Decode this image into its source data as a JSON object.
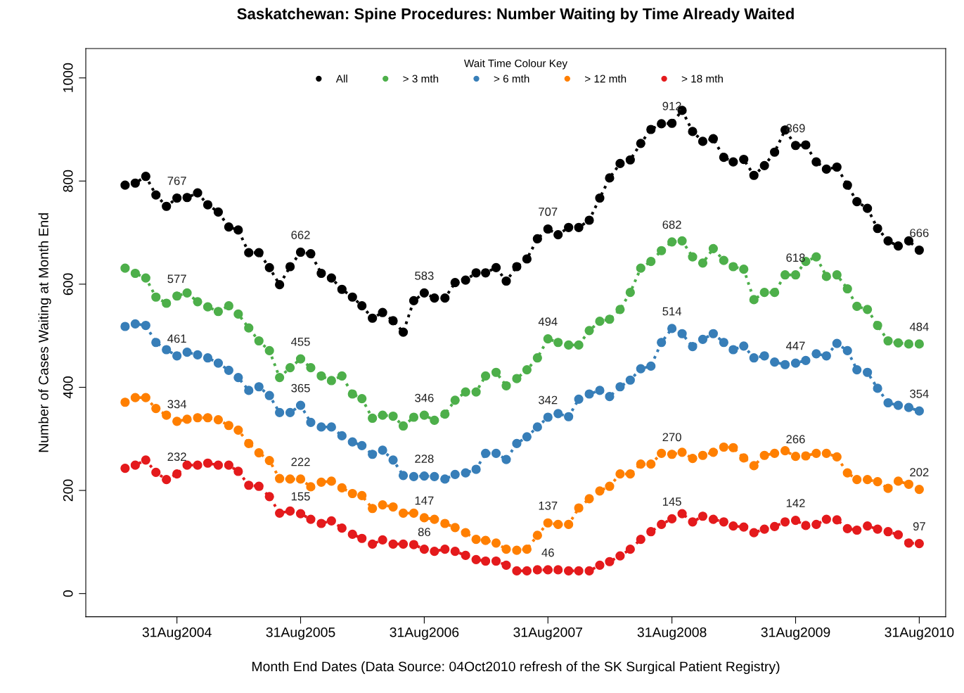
{
  "chart_data": {
    "type": "line",
    "title": "Saskatchewan: Spine Procedures: Number Waiting by Time Already Waited",
    "xlabel": "Month End Dates (Data Source: 04Oct2010 refresh of the SK Surgical Patient Registry)",
    "ylabel": "Number of Cases Waiting at Month End",
    "legend_title": "Wait Time Colour Key",
    "legend": "top",
    "marker": "circle",
    "line_style": "dotted",
    "grid": false,
    "x": [
      "2004-03-31",
      "2004-04-30",
      "2004-05-31",
      "2004-06-30",
      "2004-07-31",
      "2004-08-31",
      "2004-09-30",
      "2004-10-31",
      "2004-11-30",
      "2004-12-31",
      "2005-01-31",
      "2005-02-28",
      "2005-03-31",
      "2005-04-30",
      "2005-05-31",
      "2005-06-30",
      "2005-07-31",
      "2005-08-31",
      "2005-09-30",
      "2005-10-31",
      "2005-11-30",
      "2005-12-31",
      "2006-01-31",
      "2006-02-28",
      "2006-03-31",
      "2006-04-30",
      "2006-05-31",
      "2006-06-30",
      "2006-07-31",
      "2006-08-31",
      "2006-09-30",
      "2006-10-31",
      "2006-11-30",
      "2006-12-31",
      "2007-01-31",
      "2007-02-28",
      "2007-03-31",
      "2007-04-30",
      "2007-05-31",
      "2007-06-30",
      "2007-07-31",
      "2007-08-31",
      "2007-09-30",
      "2007-10-31",
      "2007-11-30",
      "2007-12-31",
      "2008-01-31",
      "2008-02-29",
      "2008-03-31",
      "2008-04-30",
      "2008-05-31",
      "2008-06-30",
      "2008-07-31",
      "2008-08-31",
      "2008-09-30",
      "2008-10-31",
      "2008-11-30",
      "2008-12-31",
      "2009-01-31",
      "2009-02-28",
      "2009-03-31",
      "2009-04-30",
      "2009-05-31",
      "2009-06-30",
      "2009-07-31",
      "2009-08-31",
      "2009-09-30",
      "2009-10-31",
      "2009-11-30",
      "2009-12-31",
      "2010-01-31",
      "2010-02-28",
      "2010-03-31",
      "2010-04-30",
      "2010-05-31",
      "2010-06-30",
      "2010-07-31",
      "2010-08-31"
    ],
    "xlim": [
      "2003-12-06",
      "2010-11-17"
    ],
    "xticks": [
      {
        "value": "2004-08-31",
        "label": "31Aug2004"
      },
      {
        "value": "2005-08-31",
        "label": "31Aug2005"
      },
      {
        "value": "2006-08-31",
        "label": "31Aug2006"
      },
      {
        "value": "2007-08-31",
        "label": "31Aug2007"
      },
      {
        "value": "2008-08-31",
        "label": "31Aug2008"
      },
      {
        "value": "2009-08-31",
        "label": "31Aug2009"
      },
      {
        "value": "2010-08-31",
        "label": "31Aug2010"
      }
    ],
    "ylim": [
      -45,
      1057
    ],
    "yticks": [
      0,
      200,
      400,
      600,
      800,
      1000
    ],
    "series": [
      {
        "name": "All",
        "color": "#000000",
        "values": [
          792,
          796,
          809,
          773,
          751,
          767,
          768,
          777,
          754,
          740,
          711,
          705,
          661,
          661,
          632,
          599,
          634,
          662,
          659,
          621,
          612,
          590,
          575,
          558,
          534,
          545,
          529,
          507,
          568,
          583,
          573,
          573,
          603,
          608,
          622,
          622,
          632,
          606,
          634,
          649,
          688,
          707,
          696,
          710,
          710,
          724,
          767,
          806,
          834,
          841,
          873,
          900,
          911,
          912,
          937,
          896,
          877,
          882,
          846,
          837,
          842,
          811,
          830,
          856,
          899,
          869,
          870,
          837,
          823,
          827,
          792,
          760,
          747,
          708,
          684,
          674,
          684,
          666
        ],
        "value_labels": [
          null,
          null,
          null,
          null,
          null,
          "767",
          null,
          null,
          null,
          null,
          null,
          null,
          null,
          null,
          null,
          null,
          null,
          "662",
          null,
          null,
          null,
          null,
          null,
          null,
          null,
          null,
          null,
          null,
          null,
          "583",
          null,
          null,
          null,
          null,
          null,
          null,
          null,
          null,
          null,
          null,
          null,
          "707",
          null,
          null,
          null,
          null,
          null,
          null,
          null,
          null,
          null,
          null,
          null,
          "912",
          null,
          null,
          null,
          null,
          null,
          null,
          null,
          null,
          null,
          null,
          null,
          "869",
          null,
          null,
          null,
          null,
          null,
          null,
          null,
          null,
          null,
          null,
          null,
          "666"
        ]
      },
      {
        "name": "> 3 mth",
        "color": "#4daf4a",
        "values": [
          631,
          621,
          612,
          575,
          563,
          577,
          583,
          566,
          556,
          547,
          558,
          542,
          515,
          490,
          471,
          419,
          438,
          455,
          438,
          422,
          413,
          422,
          387,
          378,
          340,
          346,
          344,
          325,
          342,
          346,
          336,
          348,
          375,
          391,
          391,
          422,
          429,
          403,
          417,
          434,
          457,
          494,
          487,
          482,
          482,
          510,
          528,
          532,
          551,
          584,
          631,
          644,
          665,
          682,
          684,
          653,
          641,
          669,
          646,
          634,
          629,
          570,
          584,
          584,
          618,
          618,
          644,
          653,
          615,
          618,
          591,
          557,
          551,
          520,
          490,
          486,
          484,
          484
        ],
        "value_labels": [
          null,
          null,
          null,
          null,
          null,
          "577",
          null,
          null,
          null,
          null,
          null,
          null,
          null,
          null,
          null,
          null,
          null,
          "455",
          null,
          null,
          null,
          null,
          null,
          null,
          null,
          null,
          null,
          null,
          null,
          "346",
          null,
          null,
          null,
          null,
          null,
          null,
          null,
          null,
          null,
          null,
          null,
          "494",
          null,
          null,
          null,
          null,
          null,
          null,
          null,
          null,
          null,
          null,
          null,
          "682",
          null,
          null,
          null,
          null,
          null,
          null,
          null,
          null,
          null,
          null,
          null,
          "618",
          null,
          null,
          null,
          null,
          null,
          null,
          null,
          null,
          null,
          null,
          null,
          "484"
        ]
      },
      {
        "name": "> 6 mth",
        "color": "#377eb8",
        "values": [
          518,
          523,
          520,
          487,
          473,
          461,
          468,
          463,
          457,
          447,
          433,
          419,
          394,
          401,
          384,
          351,
          351,
          365,
          332,
          323,
          323,
          306,
          294,
          287,
          270,
          278,
          259,
          229,
          227,
          228,
          227,
          222,
          231,
          234,
          241,
          272,
          272,
          260,
          291,
          304,
          323,
          342,
          349,
          343,
          377,
          387,
          394,
          382,
          401,
          414,
          436,
          441,
          487,
          514,
          504,
          479,
          493,
          504,
          487,
          473,
          480,
          457,
          461,
          449,
          444,
          447,
          452,
          465,
          461,
          485,
          471,
          434,
          429,
          398,
          370,
          365,
          361,
          354
        ],
        "value_labels": [
          null,
          null,
          null,
          null,
          null,
          "461",
          null,
          null,
          null,
          null,
          null,
          null,
          null,
          null,
          null,
          null,
          null,
          "365",
          null,
          null,
          null,
          null,
          null,
          null,
          null,
          null,
          null,
          null,
          null,
          "228",
          null,
          null,
          null,
          null,
          null,
          null,
          null,
          null,
          null,
          null,
          null,
          "342",
          null,
          null,
          null,
          null,
          null,
          null,
          null,
          null,
          null,
          null,
          null,
          "514",
          null,
          null,
          null,
          null,
          null,
          null,
          null,
          null,
          null,
          null,
          null,
          "447",
          null,
          null,
          null,
          null,
          null,
          null,
          null,
          null,
          null,
          null,
          null,
          "354"
        ]
      },
      {
        "name": "> 12 mth",
        "color": "#ff7f00",
        "values": [
          371,
          380,
          380,
          359,
          346,
          334,
          338,
          341,
          341,
          337,
          326,
          317,
          291,
          273,
          258,
          223,
          222,
          222,
          207,
          216,
          218,
          205,
          194,
          190,
          165,
          172,
          168,
          156,
          156,
          147,
          144,
          136,
          128,
          118,
          105,
          103,
          98,
          86,
          84,
          86,
          113,
          137,
          134,
          134,
          166,
          184,
          199,
          208,
          232,
          232,
          251,
          251,
          272,
          270,
          274,
          262,
          268,
          274,
          284,
          283,
          263,
          248,
          268,
          272,
          277,
          266,
          267,
          272,
          272,
          265,
          234,
          221,
          221,
          217,
          204,
          218,
          212,
          202
        ],
        "value_labels": [
          null,
          null,
          null,
          null,
          null,
          "334",
          null,
          null,
          null,
          null,
          null,
          null,
          null,
          null,
          null,
          null,
          null,
          "222",
          null,
          null,
          null,
          null,
          null,
          null,
          null,
          null,
          null,
          null,
          null,
          "147",
          null,
          null,
          null,
          null,
          null,
          null,
          null,
          null,
          null,
          null,
          null,
          "137",
          null,
          null,
          null,
          null,
          null,
          null,
          null,
          null,
          null,
          null,
          null,
          "270",
          null,
          null,
          null,
          null,
          null,
          null,
          null,
          null,
          null,
          null,
          null,
          "266",
          null,
          null,
          null,
          null,
          null,
          null,
          null,
          null,
          null,
          null,
          null,
          "202"
        ]
      },
      {
        "name": "> 18 mth",
        "color": "#e41a1c",
        "values": [
          243,
          249,
          259,
          235,
          221,
          232,
          249,
          249,
          253,
          249,
          249,
          237,
          210,
          208,
          188,
          156,
          160,
          155,
          144,
          136,
          141,
          127,
          115,
          107,
          96,
          104,
          96,
          96,
          95,
          86,
          82,
          86,
          82,
          74,
          66,
          63,
          63,
          55,
          44,
          44,
          46,
          46,
          46,
          44,
          44,
          44,
          55,
          62,
          73,
          86,
          105,
          120,
          134,
          145,
          155,
          139,
          150,
          144,
          139,
          131,
          129,
          118,
          125,
          130,
          139,
          142,
          132,
          134,
          144,
          143,
          126,
          123,
          131,
          125,
          120,
          114,
          98,
          97
        ],
        "value_labels": [
          null,
          null,
          null,
          null,
          null,
          "232",
          null,
          null,
          null,
          null,
          null,
          null,
          null,
          null,
          null,
          null,
          null,
          "155",
          null,
          null,
          null,
          null,
          null,
          null,
          null,
          null,
          null,
          null,
          null,
          "86",
          null,
          null,
          null,
          null,
          null,
          null,
          null,
          null,
          null,
          null,
          null,
          "46",
          null,
          null,
          null,
          null,
          null,
          null,
          null,
          null,
          null,
          null,
          null,
          "145",
          null,
          null,
          null,
          null,
          null,
          null,
          null,
          null,
          null,
          null,
          null,
          "142",
          null,
          null,
          null,
          null,
          null,
          null,
          null,
          null,
          null,
          null,
          null,
          "97"
        ]
      }
    ]
  }
}
